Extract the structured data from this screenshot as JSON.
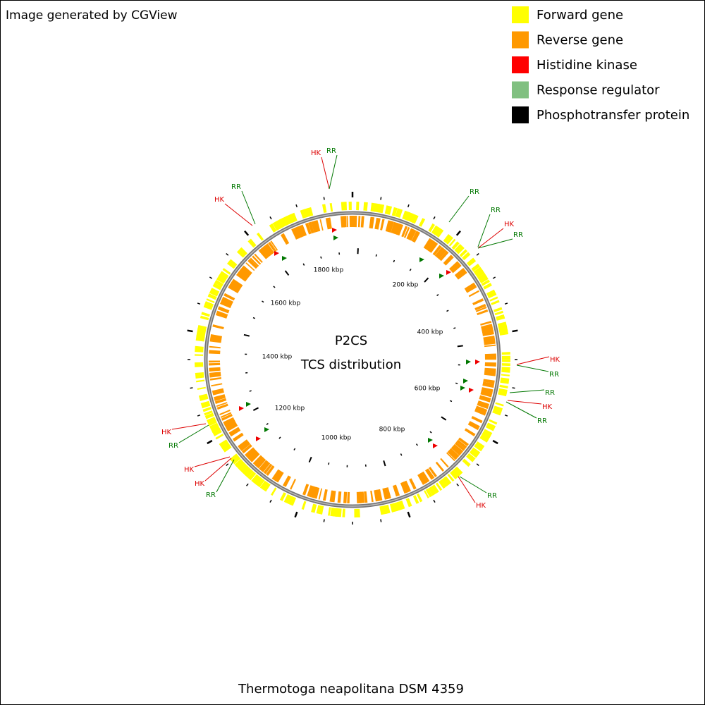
{
  "header": {
    "credit": "Image generated by CGView"
  },
  "legend": [
    {
      "name": "Forward gene",
      "color": "#ffff00"
    },
    {
      "name": "Reverse gene",
      "color": "#ff9900"
    },
    {
      "name": "Histidine kinase",
      "color": "#ff0000"
    },
    {
      "name": "Response regulator",
      "color": "#80c080"
    },
    {
      "name": "Phosphotransfer protein",
      "color": "#000000"
    }
  ],
  "map": {
    "title": "P2CS",
    "subtitle": "TCS distribution",
    "ruler_labels": [
      "200 kbp",
      "400 kbp",
      "600 kbp",
      "800 kbp",
      "1000 kbp",
      "1200 kbp",
      "1400 kbp",
      "1600 kbp",
      "1800 kbp"
    ],
    "annotations": [
      {
        "label": "HK",
        "color": "#dd0000"
      },
      {
        "label": "RR",
        "color": "#007700"
      },
      {
        "label": "RR",
        "color": "#007700"
      },
      {
        "label": "HK",
        "color": "#dd0000"
      },
      {
        "label": "RR",
        "color": "#007700"
      },
      {
        "label": "RR",
        "color": "#007700"
      },
      {
        "label": "HK",
        "color": "#dd0000"
      },
      {
        "label": "RR",
        "color": "#007700"
      },
      {
        "label": "HK",
        "color": "#dd0000"
      },
      {
        "label": "RR",
        "color": "#007700"
      },
      {
        "label": "RR",
        "color": "#007700"
      },
      {
        "label": "HK",
        "color": "#dd0000"
      },
      {
        "label": "RR",
        "color": "#007700"
      },
      {
        "label": "RR",
        "color": "#007700"
      },
      {
        "label": "HK",
        "color": "#dd0000"
      },
      {
        "label": "HK",
        "color": "#dd0000"
      },
      {
        "label": "RR",
        "color": "#007700"
      },
      {
        "label": "HK",
        "color": "#dd0000"
      },
      {
        "label": "HK",
        "color": "#dd0000"
      },
      {
        "label": "RR",
        "color": "#007700"
      }
    ]
  },
  "footer": {
    "organism": "Thermotoga neapolitana DSM 4359"
  }
}
